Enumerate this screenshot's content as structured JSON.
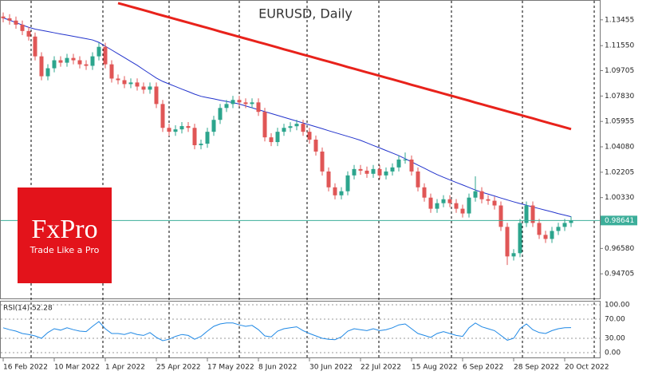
{
  "chart_data": [
    {
      "type": "candlestick",
      "title": "EURUSD, Daily",
      "categories": [
        "16 Feb 2022",
        null,
        null,
        null,
        null,
        null,
        null,
        null,
        "10 Mar 2022",
        null,
        null,
        null,
        null,
        null,
        null,
        null,
        "1 Apr 2022",
        null,
        null,
        null,
        null,
        null,
        null,
        null,
        "25 Apr 2022",
        null,
        null,
        null,
        null,
        null,
        null,
        null,
        "17 May 2022",
        null,
        null,
        null,
        null,
        null,
        null,
        null,
        "8 Jun 2022",
        null,
        null,
        null,
        null,
        null,
        null,
        null,
        "30 Jun 2022",
        null,
        null,
        null,
        null,
        null,
        null,
        null,
        "22 Jul 2022",
        null,
        null,
        null,
        null,
        null,
        null,
        null,
        "15 Aug 2022",
        null,
        null,
        null,
        null,
        null,
        null,
        null,
        "6 Sep 2022",
        null,
        null,
        null,
        null,
        null,
        null,
        null,
        "28 Sep 2022",
        null,
        null,
        null,
        null,
        null,
        null,
        null,
        "20 Oct 2022",
        null
      ],
      "ohlc": [
        [
          1.137,
          1.14,
          1.1327,
          1.1357
        ],
        [
          1.1357,
          1.1387,
          1.131,
          1.134
        ],
        [
          1.134,
          1.137,
          1.128,
          1.131
        ],
        [
          1.131,
          1.134,
          1.1233,
          1.1263
        ],
        [
          1.1263,
          1.1293,
          1.1192,
          1.1222
        ],
        [
          1.1222,
          1.1252,
          1.1046,
          1.1076
        ],
        [
          1.1076,
          1.1106,
          1.0899,
          1.0929
        ],
        [
          1.0929,
          1.1018,
          1.0899,
          1.0988
        ],
        [
          1.0988,
          1.1077,
          1.0958,
          1.1047
        ],
        [
          1.1047,
          1.1077,
          1.0999,
          1.1029
        ],
        [
          1.1029,
          1.1094,
          1.0999,
          1.1064
        ],
        [
          1.1064,
          1.1094,
          1.1017,
          1.1047
        ],
        [
          1.1047,
          1.1077,
          1.0987,
          1.1017
        ],
        [
          1.1017,
          1.1047,
          1.0976,
          1.1006
        ],
        [
          1.1006,
          1.1106,
          1.0976,
          1.1076
        ],
        [
          1.1076,
          1.1176,
          1.1046,
          1.1146
        ],
        [
          1.1146,
          1.1176,
          1.0987,
          1.1017
        ],
        [
          1.1017,
          1.1047,
          1.0882,
          1.0912
        ],
        [
          1.0912,
          1.0942,
          1.087,
          1.09
        ],
        [
          1.09,
          1.093,
          1.0841,
          1.0871
        ],
        [
          1.0871,
          1.0913,
          1.0841,
          1.0883
        ],
        [
          1.0883,
          1.0913,
          1.0823,
          1.0853
        ],
        [
          1.0853,
          1.0883,
          1.08,
          1.083
        ],
        [
          1.083,
          1.0883,
          1.08,
          1.0853
        ],
        [
          1.0853,
          1.0883,
          1.0694,
          1.0724
        ],
        [
          1.0724,
          1.0754,
          1.0518,
          1.0548
        ],
        [
          1.0548,
          1.0578,
          1.0489,
          1.0519
        ],
        [
          1.0519,
          1.0567,
          1.0489,
          1.0537
        ],
        [
          1.0537,
          1.0591,
          1.0507,
          1.0561
        ],
        [
          1.0561,
          1.0591,
          1.0518,
          1.0548
        ],
        [
          1.0548,
          1.0578,
          1.039,
          1.042
        ],
        [
          1.042,
          1.0461,
          1.039,
          1.0431
        ],
        [
          1.0431,
          1.0549,
          1.0401,
          1.0519
        ],
        [
          1.0519,
          1.0637,
          1.0489,
          1.0607
        ],
        [
          1.0607,
          1.0725,
          1.0577,
          1.0695
        ],
        [
          1.0695,
          1.0754,
          1.0665,
          1.0724
        ],
        [
          1.0724,
          1.0784,
          1.0694,
          1.0754
        ],
        [
          1.0754,
          1.0784,
          1.0706,
          1.0736
        ],
        [
          1.0736,
          1.0766,
          1.0694,
          1.0724
        ],
        [
          1.0724,
          1.0766,
          1.0694,
          1.0736
        ],
        [
          1.0736,
          1.0766,
          1.0636,
          1.0666
        ],
        [
          1.0666,
          1.0696,
          1.0448,
          1.0478
        ],
        [
          1.0478,
          1.0508,
          1.0413,
          1.0443
        ],
        [
          1.0443,
          1.0549,
          1.0413,
          1.0519
        ],
        [
          1.0519,
          1.0578,
          1.0489,
          1.0548
        ],
        [
          1.0548,
          1.059,
          1.0518,
          1.056
        ],
        [
          1.056,
          1.0608,
          1.053,
          1.0578
        ],
        [
          1.0578,
          1.0608,
          1.0489,
          1.0519
        ],
        [
          1.0519,
          1.0549,
          1.0431,
          1.0461
        ],
        [
          1.0461,
          1.0491,
          1.0343,
          1.0373
        ],
        [
          1.0373,
          1.0403,
          1.0196,
          1.0226
        ],
        [
          1.0226,
          1.0256,
          1.0079,
          1.0109
        ],
        [
          1.0109,
          1.0139,
          1.002,
          1.005
        ],
        [
          1.005,
          1.011,
          1.002,
          1.008
        ],
        [
          1.008,
          1.0227,
          1.005,
          1.0197
        ],
        [
          1.0197,
          1.0274,
          1.0167,
          1.0244
        ],
        [
          1.0244,
          1.0274,
          1.0202,
          1.0232
        ],
        [
          1.0232,
          1.0262,
          1.0179,
          1.0209
        ],
        [
          1.0209,
          1.0274,
          1.0179,
          1.0244
        ],
        [
          1.0244,
          1.0274,
          1.0167,
          1.0197
        ],
        [
          1.0197,
          1.0256,
          1.0167,
          1.0226
        ],
        [
          1.0226,
          1.0286,
          1.0196,
          1.0256
        ],
        [
          1.0256,
          1.0344,
          1.0226,
          1.0314
        ],
        [
          1.0314,
          1.0366,
          1.0284,
          1.0314
        ],
        [
          1.0314,
          1.0344,
          1.0196,
          1.0226
        ],
        [
          1.0226,
          1.0256,
          1.0079,
          1.0109
        ],
        [
          1.0109,
          1.0139,
          1.0003,
          1.0033
        ],
        [
          1.0033,
          1.0063,
          0.9921,
          0.9951
        ],
        [
          0.9951,
          1.0022,
          0.9921,
          0.9992
        ],
        [
          0.9992,
          1.0051,
          0.9962,
          1.0021
        ],
        [
          1.0021,
          1.0051,
          0.9962,
          0.9992
        ],
        [
          0.9992,
          1.0022,
          0.9921,
          0.9951
        ],
        [
          0.9951,
          0.9981,
          0.9886,
          0.9916
        ],
        [
          0.9916,
          1.0063,
          0.9886,
          1.0033
        ],
        [
          1.0033,
          1.019,
          1.0003,
          1.008
        ],
        [
          1.008,
          1.011,
          0.9991,
          1.0021
        ],
        [
          1.0021,
          1.0051,
          0.998,
          1.001
        ],
        [
          1.001,
          1.004,
          0.9945,
          0.9975
        ],
        [
          0.9975,
          1.0005,
          0.9787,
          0.9817
        ],
        [
          0.9817,
          0.9847,
          0.9536,
          0.9599
        ],
        [
          0.9599,
          0.9653,
          0.9569,
          0.9623
        ],
        [
          0.9623,
          0.9876,
          0.9593,
          0.9846
        ],
        [
          0.9846,
          1.0005,
          0.9816,
          0.9975
        ],
        [
          0.9975,
          1.0005,
          0.9816,
          0.9846
        ],
        [
          0.9846,
          0.9876,
          0.9728,
          0.9758
        ],
        [
          0.9758,
          0.9788,
          0.9698,
          0.9728
        ],
        [
          0.9728,
          0.9817,
          0.9698,
          0.9787
        ],
        [
          0.9787,
          0.9847,
          0.9757,
          0.9817
        ],
        [
          0.9817,
          0.9876,
          0.9787,
          0.9846
        ],
        [
          0.9846,
          0.9894,
          0.9816,
          0.9864
        ]
      ],
      "up_color": "#2ca58d",
      "down_color": "#e05656",
      "moving_averages": [
        {
          "color": "#2233cc",
          "width": 1,
          "values": [
            1.136,
            1.1343,
            1.1325,
            1.1307,
            1.129,
            1.1277,
            1.1268,
            1.1259,
            1.125,
            1.1241,
            1.1233,
            1.1224,
            1.1215,
            1.1206,
            1.1197,
            1.1179,
            1.1151,
            1.1123,
            1.1095,
            1.1067,
            1.1038,
            1.101,
            1.0978,
            1.0947,
            1.0916,
            1.0891,
            1.0872,
            1.0853,
            1.0834,
            1.0816,
            1.0797,
            1.0781,
            1.0771,
            1.0762,
            1.0752,
            1.0743,
            1.0734,
            1.0724,
            1.071,
            1.0696,
            1.0682,
            1.0668,
            1.0654,
            1.064,
            1.0626,
            1.0612,
            1.0598,
            1.0584,
            1.057,
            1.0556,
            1.0542,
            1.0527,
            1.0513,
            1.0499,
            1.0485,
            1.0471,
            1.0456,
            1.0437,
            1.0418,
            1.04,
            1.0381,
            1.0362,
            1.0343,
            1.032,
            1.0297,
            1.0273,
            1.025,
            1.0226,
            1.0203,
            1.0183,
            1.0164,
            1.0145,
            1.0127,
            1.0108,
            1.0089,
            1.0073,
            1.0059,
            1.0045,
            1.003,
            1.0016,
            1.0002,
            0.9989,
            0.9977,
            0.9964,
            0.9952,
            0.994,
            0.9928,
            0.9915,
            0.9904,
            0.9892
          ]
        },
        {
          "color": "#e8221b",
          "width": 3,
          "values": [
            null,
            null,
            null,
            null,
            null,
            null,
            null,
            null,
            null,
            null,
            null,
            null,
            null,
            null,
            null,
            null,
            null,
            null,
            1.1469,
            1.1456,
            1.1443,
            1.143,
            1.1417,
            1.1404,
            1.139,
            1.1377,
            1.1364,
            1.1351,
            1.1338,
            1.1325,
            1.1312,
            1.1299,
            1.1286,
            1.1273,
            1.1259,
            1.1246,
            1.1233,
            1.122,
            1.1207,
            1.1194,
            1.1181,
            1.1168,
            1.1155,
            1.1142,
            1.1128,
            1.1115,
            1.1102,
            1.1089,
            1.1076,
            1.1063,
            1.105,
            1.1037,
            1.1024,
            1.1011,
            1.0997,
            1.0984,
            1.0971,
            1.0958,
            1.0945,
            1.0932,
            1.0919,
            1.0906,
            1.0893,
            1.088,
            1.0866,
            1.0853,
            1.084,
            1.0827,
            1.0814,
            1.0801,
            1.0788,
            1.0775,
            1.0762,
            1.0749,
            1.0735,
            1.0722,
            1.0709,
            1.0696,
            1.0683,
            1.067,
            1.0657,
            1.0644,
            1.0631,
            1.0618,
            1.0604,
            1.0591,
            1.0578,
            1.0565,
            1.0552,
            1.0539
          ]
        }
      ],
      "ylim": [
        0.9289,
        1.1486
      ],
      "yticks": [
        1.13455,
        {
          "value": 1.1155,
          "label": "1.11550"
        },
        1.09705,
        {
          "value": 1.0783,
          "label": "1.07830"
        },
        1.05955,
        {
          "value": 1.0408,
          "label": "1.04080"
        },
        1.02205,
        {
          "value": 1.0033,
          "label": "1.00330"
        },
        {
          "value": 0.9658,
          "label": "0.96580"
        },
        0.94705
      ],
      "current_price": 0.98641,
      "current_price_color": "#3cae9a"
    },
    {
      "type": "line",
      "title": "RSI(14) 52.28",
      "color": "#1e88e5",
      "values": [
        52,
        48,
        45,
        40,
        38,
        35,
        30,
        42,
        50,
        47,
        52,
        48,
        45,
        44,
        55,
        65,
        50,
        40,
        40,
        38,
        42,
        38,
        36,
        42,
        32,
        25,
        28,
        34,
        38,
        36,
        28,
        34,
        45,
        55,
        60,
        62,
        62,
        58,
        55,
        57,
        48,
        35,
        33,
        45,
        50,
        52,
        54,
        46,
        40,
        35,
        30,
        28,
        27,
        33,
        45,
        50,
        48,
        46,
        50,
        46,
        48,
        52,
        58,
        60,
        50,
        40,
        36,
        32,
        40,
        44,
        40,
        36,
        34,
        52,
        62,
        54,
        50,
        46,
        36,
        26,
        30,
        50,
        60,
        48,
        42,
        40,
        46,
        50,
        52,
        52.28
      ],
      "ylim": [
        0,
        100
      ],
      "yticks": [
        {
          "value": 100,
          "label": "100.00"
        },
        {
          "value": 70,
          "label": "70.00"
        },
        {
          "value": 30,
          "label": "30.00"
        },
        {
          "value": 0,
          "label": "0.00"
        }
      ]
    }
  ],
  "logo": {
    "brand": "FxPro",
    "tagline": "Trade Like a Pro"
  }
}
